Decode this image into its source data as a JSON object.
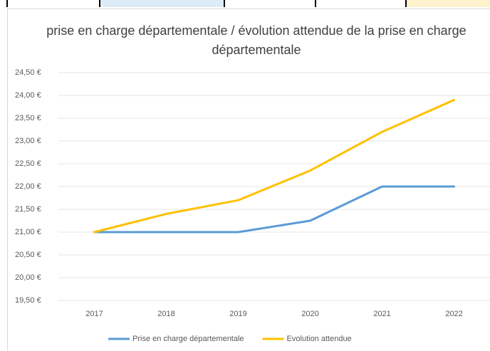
{
  "chart_data": {
    "type": "line",
    "title": "prise en charge départementale / évolution attendue de la prise en charge départementale",
    "categories": [
      "2017",
      "2018",
      "2019",
      "2020",
      "2021",
      "2022"
    ],
    "series": [
      {
        "name": "Prise en charge départementale",
        "color": "#5b9bd5",
        "values": [
          21.0,
          21.0,
          21.0,
          21.25,
          22.0,
          22.0
        ]
      },
      {
        "name": "Evolution attendue",
        "color": "#ffc000",
        "values": [
          21.0,
          21.4,
          21.7,
          22.35,
          23.2,
          23.9
        ]
      }
    ],
    "ylim": [
      19.5,
      24.5
    ],
    "yticks": [
      {
        "value": 19.5,
        "label": "19,50 €"
      },
      {
        "value": 20.0,
        "label": "20,00 €"
      },
      {
        "value": 20.5,
        "label": "20,50 €"
      },
      {
        "value": 21.0,
        "label": "21,00 €"
      },
      {
        "value": 21.5,
        "label": "21,50 €"
      },
      {
        "value": 22.0,
        "label": "22,00 €"
      },
      {
        "value": 22.5,
        "label": "22,50 €"
      },
      {
        "value": 23.0,
        "label": "23,00 €"
      },
      {
        "value": 23.5,
        "label": "23,50 €"
      },
      {
        "value": 24.0,
        "label": "24,00 €"
      },
      {
        "value": 24.5,
        "label": "24,50 €"
      }
    ],
    "grid": true,
    "legend": "bottom"
  }
}
